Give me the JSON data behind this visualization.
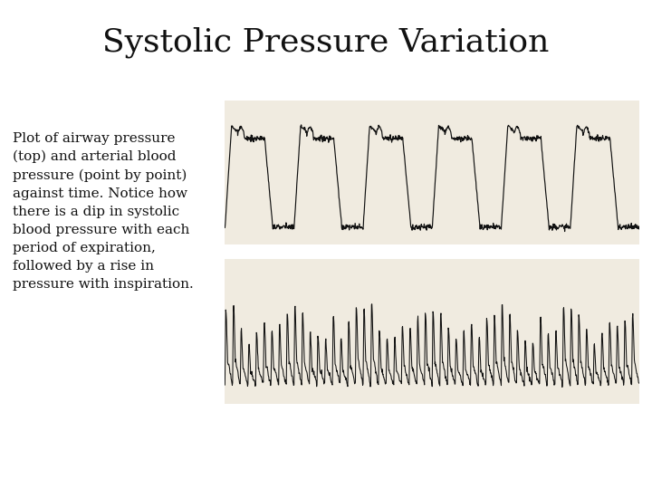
{
  "title": "Systolic Pressure Variation",
  "title_fontsize": 26,
  "title_font": "serif",
  "description": "Plot of airway pressure\n(top) and arterial blood\npressure (point by point)\nagainst time. Notice how\nthere is a dip in systolic\nblood pressure with each\nperiod of expiration,\nfollowed by a rise in\npressure with inspiration.",
  "desc_fontsize": 11,
  "background_color": "#ffffff",
  "waveform_color": "#111111",
  "plot_bg_color": "#f0ebe0",
  "n_breaths": 6,
  "n_hb_per_breath": 9
}
